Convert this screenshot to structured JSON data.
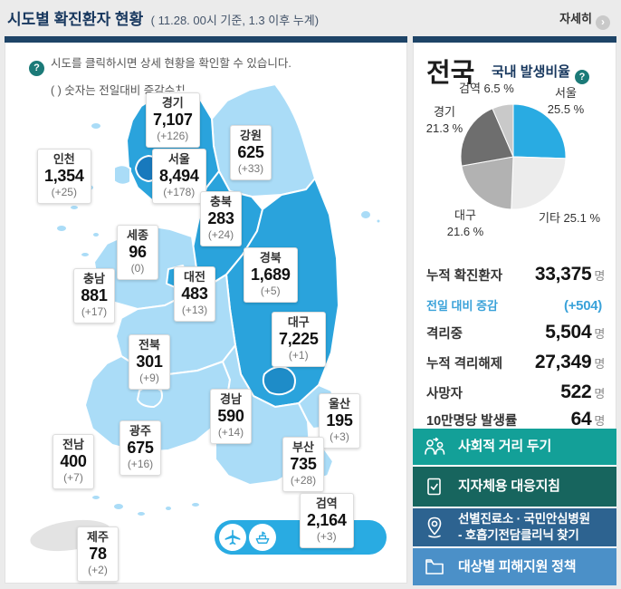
{
  "header": {
    "title": "시도별 확진환자 현황",
    "subtitle": "( 11.28. 00시 기준, 1.3 이후 누계)",
    "more_label": "자세히"
  },
  "map_panel": {
    "help_icon": "?",
    "help_line1": "시도를 클릭하시면 상세 현황을 확인할 수 있습니다.",
    "help_line2": "( ) 숫자는 전일대비 증감수치",
    "regions": [
      {
        "id": "gyeonggi",
        "name": "경기",
        "count": "7,107",
        "delta": "(+126)"
      },
      {
        "id": "gangwon",
        "name": "강원",
        "count": "625",
        "delta": "(+33)"
      },
      {
        "id": "incheon",
        "name": "인천",
        "count": "1,354",
        "delta": "(+25)"
      },
      {
        "id": "seoul",
        "name": "서울",
        "count": "8,494",
        "delta": "(+178)"
      },
      {
        "id": "chungbuk",
        "name": "충북",
        "count": "283",
        "delta": "(+24)"
      },
      {
        "id": "sejong",
        "name": "세종",
        "count": "96",
        "delta": "(0)"
      },
      {
        "id": "gyeongbuk",
        "name": "경북",
        "count": "1,689",
        "delta": "(+5)"
      },
      {
        "id": "chungnam",
        "name": "충남",
        "count": "881",
        "delta": "(+17)"
      },
      {
        "id": "daejeon",
        "name": "대전",
        "count": "483",
        "delta": "(+13)"
      },
      {
        "id": "daegu",
        "name": "대구",
        "count": "7,225",
        "delta": "(+1)"
      },
      {
        "id": "jeonbuk",
        "name": "전북",
        "count": "301",
        "delta": "(+9)"
      },
      {
        "id": "gyeongnam",
        "name": "경남",
        "count": "590",
        "delta": "(+14)"
      },
      {
        "id": "ulsan",
        "name": "울산",
        "count": "195",
        "delta": "(+3)"
      },
      {
        "id": "gwangju",
        "name": "광주",
        "count": "675",
        "delta": "(+16)"
      },
      {
        "id": "busan",
        "name": "부산",
        "count": "735",
        "delta": "(+28)"
      },
      {
        "id": "jeonnam",
        "name": "전남",
        "count": "400",
        "delta": "(+7)"
      },
      {
        "id": "quarantine",
        "name": "검역",
        "count": "2,164",
        "delta": "(+3)"
      },
      {
        "id": "jeju",
        "name": "제주",
        "count": "78",
        "delta": "(+2)"
      }
    ]
  },
  "national_panel": {
    "title": "전국",
    "pie_title": "국내 발생비율",
    "pie_help_icon": "?",
    "stats": [
      {
        "label": "누적 확진환자",
        "value": "33,375",
        "unit": "명"
      },
      {
        "label": "전일 대비 증감",
        "value": "(+504)",
        "unit": ""
      },
      {
        "label": "격리중",
        "value": "5,504",
        "unit": "명"
      },
      {
        "label": "누적 격리해제",
        "value": "27,349",
        "unit": "명"
      },
      {
        "label": "사망자",
        "value": "522",
        "unit": "명"
      },
      {
        "label": "10만명당 발생률",
        "value": "64",
        "unit": "명"
      }
    ],
    "buttons": [
      {
        "line1": "사회적 거리 두기",
        "line2": ""
      },
      {
        "line1": "지자체용 대응지침",
        "line2": ""
      },
      {
        "line1": "선별진료소 · 국민안심병원",
        "line2": "- 호흡기전담클리닉 찾기"
      },
      {
        "line1": "대상별 피해지원 정책",
        "line2": ""
      }
    ]
  },
  "chart_data": {
    "type": "pie",
    "title": "국내 발생비율",
    "direction": "clockwise",
    "start_angle_deg": 0,
    "legend_position": "around",
    "slices": [
      {
        "label": "서울",
        "value": 25.5,
        "pct_text": "25.5 %",
        "color": "#29abe2"
      },
      {
        "label": "기타",
        "value": 25.1,
        "pct_text": "25.1 %",
        "color": "#ececec"
      },
      {
        "label": "대구",
        "value": 21.6,
        "pct_text": "21.6 %",
        "color": "#b2b2b2"
      },
      {
        "label": "경기",
        "value": 21.3,
        "pct_text": "21.3 %",
        "color": "#6e6e6e"
      },
      {
        "label": "검역",
        "value": 6.5,
        "pct_text": "6.5 %",
        "color": "#c9c9c9"
      }
    ]
  },
  "colors": {
    "navy_bar": "#1e4467",
    "accent_blue": "#29abe2",
    "map_light_blue": "#aadcf7",
    "map_medium_blue": "#2aa3dc",
    "map_seoul_blue": "#1879bd",
    "map_daegu_blue": "#1e8cc8",
    "jeju_gray": "#e3e3e3",
    "delta_text_blue": "#3aa2d9",
    "btn_teal": "#13a098",
    "btn_dark_teal": "#17655e",
    "btn_steel_blue": "#2d6390",
    "btn_light_blue": "#4b90c8",
    "help_teal": "#1b7a78"
  }
}
